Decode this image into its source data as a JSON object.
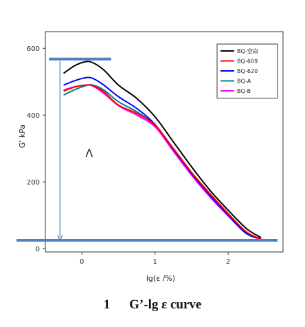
{
  "chart_data": {
    "type": "line",
    "title": "",
    "xlabel": "lg(ε /%)",
    "ylabel": "G' kPa",
    "xlim": [
      -0.5,
      2.75
    ],
    "ylim": [
      -10,
      650
    ],
    "x_ticks": [
      0,
      1,
      2
    ],
    "y_ticks": [
      0,
      200,
      400,
      600
    ],
    "grid": false,
    "legend_position": "top-right",
    "series": [
      {
        "name": "BQ-空白",
        "color": "#000000",
        "points": [
          [
            -0.25,
            525
          ],
          [
            -0.1,
            548
          ],
          [
            0.05,
            560
          ],
          [
            0.15,
            557
          ],
          [
            0.3,
            535
          ],
          [
            0.5,
            490
          ],
          [
            0.75,
            450
          ],
          [
            1.0,
            395
          ],
          [
            1.25,
            320
          ],
          [
            1.5,
            245
          ],
          [
            1.75,
            175
          ],
          [
            2.0,
            115
          ],
          [
            2.25,
            60
          ],
          [
            2.45,
            33
          ]
        ]
      },
      {
        "name": "BQ-609",
        "color": "#ff0000",
        "points": [
          [
            -0.25,
            472
          ],
          [
            -0.1,
            484
          ],
          [
            0.05,
            490
          ],
          [
            0.15,
            488
          ],
          [
            0.3,
            470
          ],
          [
            0.5,
            430
          ],
          [
            0.75,
            405
          ],
          [
            1.0,
            370
          ],
          [
            1.25,
            300
          ],
          [
            1.5,
            228
          ],
          [
            1.75,
            165
          ],
          [
            2.0,
            105
          ],
          [
            2.25,
            50
          ],
          [
            2.45,
            29
          ]
        ]
      },
      {
        "name": "BQ-620",
        "color": "#0000ff",
        "points": [
          [
            -0.25,
            490
          ],
          [
            -0.1,
            503
          ],
          [
            0.05,
            512
          ],
          [
            0.15,
            510
          ],
          [
            0.3,
            490
          ],
          [
            0.5,
            455
          ],
          [
            0.75,
            420
          ],
          [
            1.0,
            372
          ],
          [
            1.25,
            298
          ],
          [
            1.5,
            225
          ],
          [
            1.75,
            160
          ],
          [
            2.0,
            100
          ],
          [
            2.25,
            45
          ],
          [
            2.45,
            30
          ]
        ]
      },
      {
        "name": "BQ-A",
        "color": "#008080",
        "points": [
          [
            -0.25,
            460
          ],
          [
            -0.1,
            476
          ],
          [
            0.05,
            488
          ],
          [
            0.15,
            490
          ],
          [
            0.3,
            475
          ],
          [
            0.5,
            440
          ],
          [
            0.75,
            410
          ],
          [
            1.0,
            370
          ],
          [
            1.25,
            300
          ],
          [
            1.5,
            228
          ],
          [
            1.75,
            162
          ],
          [
            2.0,
            102
          ],
          [
            2.25,
            48
          ],
          [
            2.45,
            29
          ]
        ]
      },
      {
        "name": "BQ-B",
        "color": "#ff00ff",
        "points": [
          [
            -0.25,
            475
          ],
          [
            -0.1,
            485
          ],
          [
            0.05,
            490
          ],
          [
            0.15,
            487
          ],
          [
            0.3,
            465
          ],
          [
            0.5,
            428
          ],
          [
            0.75,
            400
          ],
          [
            1.0,
            365
          ],
          [
            1.25,
            292
          ],
          [
            1.5,
            220
          ],
          [
            1.75,
            155
          ],
          [
            2.0,
            98
          ],
          [
            2.25,
            45
          ],
          [
            2.45,
            28
          ]
        ]
      }
    ],
    "annotations": {
      "symbol": "Λ",
      "symbol_at": [
        0.1,
        275
      ],
      "upper_hline_y": 568,
      "upper_hline_x": [
        -0.45,
        0.4
      ],
      "lower_hline_y": 25,
      "lower_hline_x": [
        -0.45,
        2.7
      ],
      "arrow_x": -0.3,
      "line_color": "#4f81bd"
    }
  },
  "caption": {
    "number": "1",
    "text": "G’-lg ε curve"
  }
}
